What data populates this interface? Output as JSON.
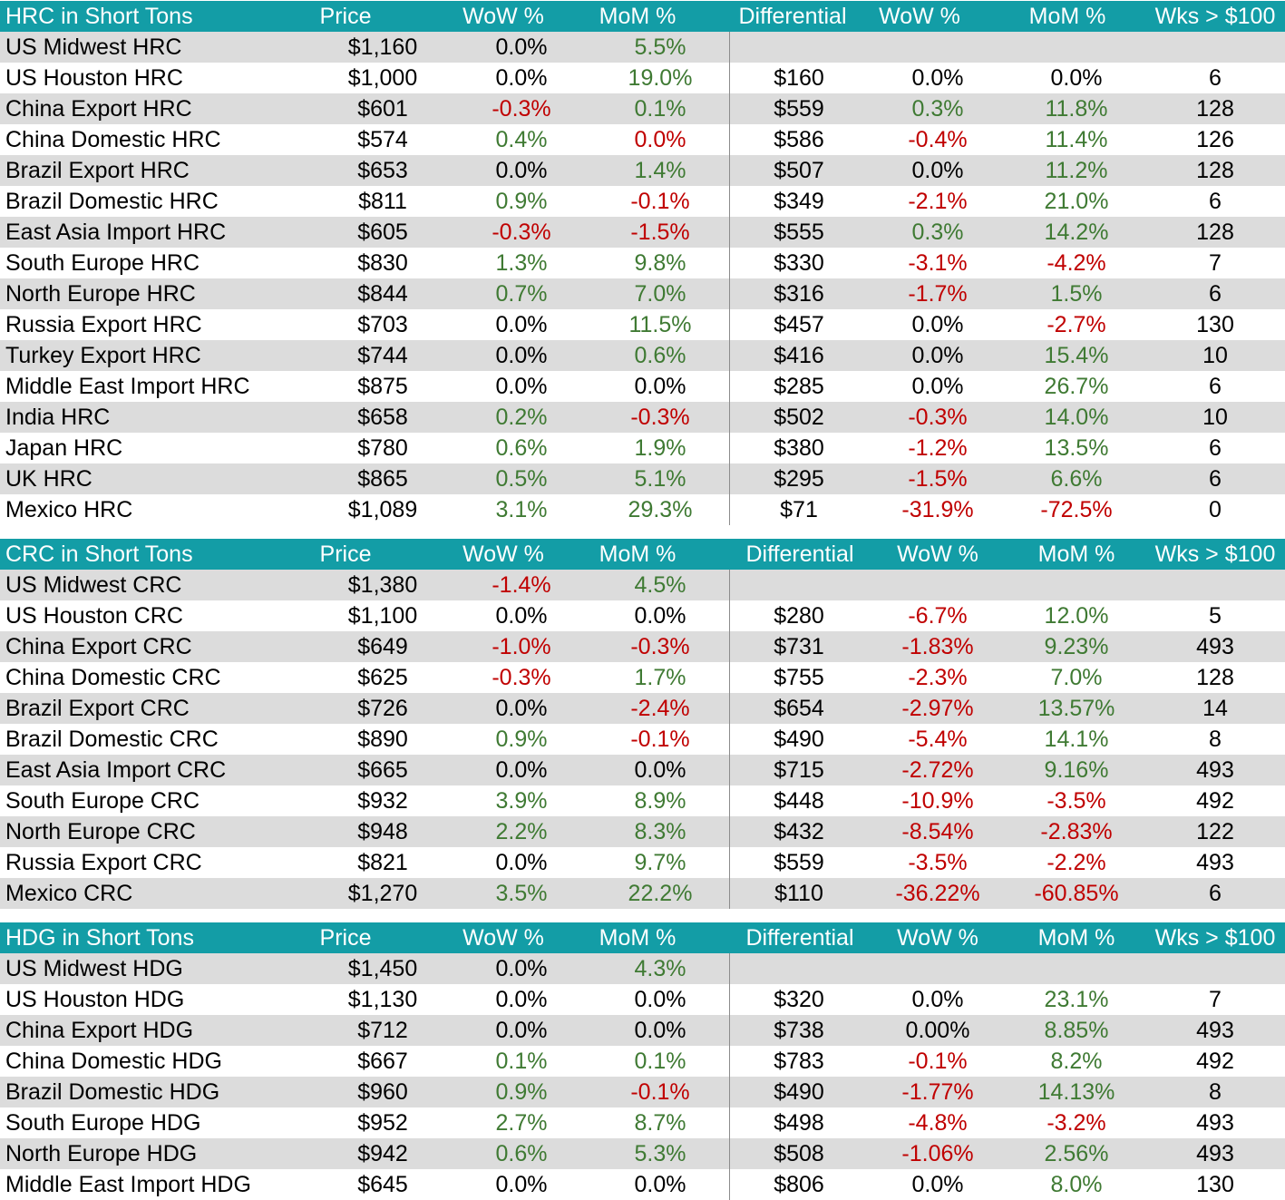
{
  "sections": [
    {
      "headers": [
        "HRC in Short Tons",
        "Price",
        "WoW %",
        "MoM %",
        "Differential",
        "WoW %",
        "MoM %",
        "Wks > $100"
      ],
      "rows": [
        {
          "name": "US Midwest HRC",
          "price": "$1,160",
          "wow": "0.0%",
          "wow_tone": "neu",
          "mom": "5.5%",
          "mom_tone": "pos",
          "diff": "",
          "dwow": "",
          "dwow_tone": "neu",
          "dmom": "",
          "dmom_tone": "neu",
          "wks": ""
        },
        {
          "name": "US Houston HRC",
          "price": "$1,000",
          "wow": "0.0%",
          "wow_tone": "neu",
          "mom": "19.0%",
          "mom_tone": "pos",
          "diff": "$160",
          "dwow": "0.0%",
          "dwow_tone": "neu",
          "dmom": "0.0%",
          "dmom_tone": "neu",
          "wks": "6"
        },
        {
          "name": "China Export HRC",
          "price": "$601",
          "wow": "-0.3%",
          "wow_tone": "neg",
          "mom": "0.1%",
          "mom_tone": "pos",
          "diff": "$559",
          "dwow": "0.3%",
          "dwow_tone": "pos",
          "dmom": "11.8%",
          "dmom_tone": "pos",
          "wks": "128"
        },
        {
          "name": "China Domestic HRC",
          "price": "$574",
          "wow": "0.4%",
          "wow_tone": "pos",
          "mom": "0.0%",
          "mom_tone": "neg",
          "diff": "$586",
          "dwow": "-0.4%",
          "dwow_tone": "neg",
          "dmom": "11.4%",
          "dmom_tone": "pos",
          "wks": "126"
        },
        {
          "name": "Brazil Export HRC",
          "price": "$653",
          "wow": "0.0%",
          "wow_tone": "neu",
          "mom": "1.4%",
          "mom_tone": "pos",
          "diff": "$507",
          "dwow": "0.0%",
          "dwow_tone": "neu",
          "dmom": "11.2%",
          "dmom_tone": "pos",
          "wks": "128"
        },
        {
          "name": "Brazil Domestic HRC",
          "price": "$811",
          "wow": "0.9%",
          "wow_tone": "pos",
          "mom": "-0.1%",
          "mom_tone": "neg",
          "diff": "$349",
          "dwow": "-2.1%",
          "dwow_tone": "neg",
          "dmom": "21.0%",
          "dmom_tone": "pos",
          "wks": "6"
        },
        {
          "name": "East Asia Import HRC",
          "price": "$605",
          "wow": "-0.3%",
          "wow_tone": "neg",
          "mom": "-1.5%",
          "mom_tone": "neg",
          "diff": "$555",
          "dwow": "0.3%",
          "dwow_tone": "pos",
          "dmom": "14.2%",
          "dmom_tone": "pos",
          "wks": "128"
        },
        {
          "name": "South Europe HRC",
          "price": "$830",
          "wow": "1.3%",
          "wow_tone": "pos",
          "mom": "9.8%",
          "mom_tone": "pos",
          "diff": "$330",
          "dwow": "-3.1%",
          "dwow_tone": "neg",
          "dmom": "-4.2%",
          "dmom_tone": "neg",
          "wks": "7"
        },
        {
          "name": "North Europe HRC",
          "price": "$844",
          "wow": "0.7%",
          "wow_tone": "pos",
          "mom": "7.0%",
          "mom_tone": "pos",
          "diff": "$316",
          "dwow": "-1.7%",
          "dwow_tone": "neg",
          "dmom": "1.5%",
          "dmom_tone": "pos",
          "wks": "6"
        },
        {
          "name": "Russia Export HRC",
          "price": "$703",
          "wow": "0.0%",
          "wow_tone": "neu",
          "mom": "11.5%",
          "mom_tone": "pos",
          "diff": "$457",
          "dwow": "0.0%",
          "dwow_tone": "neu",
          "dmom": "-2.7%",
          "dmom_tone": "neg",
          "wks": "130"
        },
        {
          "name": "Turkey Export HRC",
          "price": "$744",
          "wow": "0.0%",
          "wow_tone": "neu",
          "mom": "0.6%",
          "mom_tone": "pos",
          "diff": "$416",
          "dwow": "0.0%",
          "dwow_tone": "neu",
          "dmom": "15.4%",
          "dmom_tone": "pos",
          "wks": "10"
        },
        {
          "name": "Middle East Import HRC",
          "price": "$875",
          "wow": "0.0%",
          "wow_tone": "neu",
          "mom": "0.0%",
          "mom_tone": "neu",
          "diff": "$285",
          "dwow": "0.0%",
          "dwow_tone": "neu",
          "dmom": "26.7%",
          "dmom_tone": "pos",
          "wks": "6"
        },
        {
          "name": "India HRC",
          "price": "$658",
          "wow": "0.2%",
          "wow_tone": "pos",
          "mom": "-0.3%",
          "mom_tone": "neg",
          "diff": "$502",
          "dwow": "-0.3%",
          "dwow_tone": "neg",
          "dmom": "14.0%",
          "dmom_tone": "pos",
          "wks": "10"
        },
        {
          "name": "Japan HRC",
          "price": "$780",
          "wow": "0.6%",
          "wow_tone": "pos",
          "mom": "1.9%",
          "mom_tone": "pos",
          "diff": "$380",
          "dwow": "-1.2%",
          "dwow_tone": "neg",
          "dmom": "13.5%",
          "dmom_tone": "pos",
          "wks": "6"
        },
        {
          "name": "UK HRC",
          "price": "$865",
          "wow": "0.5%",
          "wow_tone": "pos",
          "mom": "5.1%",
          "mom_tone": "pos",
          "diff": "$295",
          "dwow": "-1.5%",
          "dwow_tone": "neg",
          "dmom": "6.6%",
          "dmom_tone": "pos",
          "wks": "6"
        },
        {
          "name": "Mexico HRC",
          "price": "$1,089",
          "wow": "3.1%",
          "wow_tone": "pos",
          "mom": "29.3%",
          "mom_tone": "pos",
          "diff": "$71",
          "dwow": "-31.9%",
          "dwow_tone": "neg",
          "dmom": "-72.5%",
          "dmom_tone": "neg",
          "wks": "0"
        }
      ]
    },
    {
      "headers": [
        "CRC in Short Tons",
        "Price",
        "WoW %",
        "MoM %",
        "Differential",
        "WoW %",
        "MoM %",
        "Wks > $100"
      ],
      "rows": [
        {
          "name": "US Midwest CRC",
          "price": "$1,380",
          "wow": "-1.4%",
          "wow_tone": "neg",
          "mom": "4.5%",
          "mom_tone": "pos",
          "diff": "",
          "dwow": "",
          "dwow_tone": "neu",
          "dmom": "",
          "dmom_tone": "neu",
          "wks": ""
        },
        {
          "name": "US Houston CRC",
          "price": "$1,100",
          "wow": "0.0%",
          "wow_tone": "neu",
          "mom": "0.0%",
          "mom_tone": "neu",
          "diff": "$280",
          "dwow": "-6.7%",
          "dwow_tone": "neg",
          "dmom": "12.0%",
          "dmom_tone": "pos",
          "wks": "5"
        },
        {
          "name": "China Export CRC",
          "price": "$649",
          "wow": "-1.0%",
          "wow_tone": "neg",
          "mom": "-0.3%",
          "mom_tone": "neg",
          "diff": "$731",
          "dwow": "-1.83%",
          "dwow_tone": "neg",
          "dmom": "9.23%",
          "dmom_tone": "pos",
          "wks": "493"
        },
        {
          "name": "China Domestic CRC",
          "price": "$625",
          "wow": "-0.3%",
          "wow_tone": "neg",
          "mom": "1.7%",
          "mom_tone": "pos",
          "diff": "$755",
          "dwow": "-2.3%",
          "dwow_tone": "neg",
          "dmom": "7.0%",
          "dmom_tone": "pos",
          "wks": "128"
        },
        {
          "name": "Brazil Export CRC",
          "price": "$726",
          "wow": "0.0%",
          "wow_tone": "neu",
          "mom": "-2.4%",
          "mom_tone": "neg",
          "diff": "$654",
          "dwow": "-2.97%",
          "dwow_tone": "neg",
          "dmom": "13.57%",
          "dmom_tone": "pos",
          "wks": "14"
        },
        {
          "name": "Brazil Domestic CRC",
          "price": "$890",
          "wow": "0.9%",
          "wow_tone": "pos",
          "mom": "-0.1%",
          "mom_tone": "neg",
          "diff": "$490",
          "dwow": "-5.4%",
          "dwow_tone": "neg",
          "dmom": "14.1%",
          "dmom_tone": "pos",
          "wks": "8"
        },
        {
          "name": "East Asia Import CRC",
          "price": "$665",
          "wow": "0.0%",
          "wow_tone": "neu",
          "mom": "0.0%",
          "mom_tone": "neu",
          "diff": "$715",
          "dwow": "-2.72%",
          "dwow_tone": "neg",
          "dmom": "9.16%",
          "dmom_tone": "pos",
          "wks": "493"
        },
        {
          "name": "South Europe CRC",
          "price": "$932",
          "wow": "3.9%",
          "wow_tone": "pos",
          "mom": "8.9%",
          "mom_tone": "pos",
          "diff": "$448",
          "dwow": "-10.9%",
          "dwow_tone": "neg",
          "dmom": "-3.5%",
          "dmom_tone": "neg",
          "wks": "492"
        },
        {
          "name": "North Europe CRC",
          "price": "$948",
          "wow": "2.2%",
          "wow_tone": "pos",
          "mom": "8.3%",
          "mom_tone": "pos",
          "diff": "$432",
          "dwow": "-8.54%",
          "dwow_tone": "neg",
          "dmom": "-2.83%",
          "dmom_tone": "neg",
          "wks": "122"
        },
        {
          "name": "Russia Export CRC",
          "price": "$821",
          "wow": "0.0%",
          "wow_tone": "neu",
          "mom": "9.7%",
          "mom_tone": "pos",
          "diff": "$559",
          "dwow": "-3.5%",
          "dwow_tone": "neg",
          "dmom": "-2.2%",
          "dmom_tone": "neg",
          "wks": "493"
        },
        {
          "name": "Mexico CRC",
          "price": "$1,270",
          "wow": "3.5%",
          "wow_tone": "pos",
          "mom": "22.2%",
          "mom_tone": "pos",
          "diff": "$110",
          "dwow": "-36.22%",
          "dwow_tone": "neg",
          "dmom": "-60.85%",
          "dmom_tone": "neg",
          "wks": "6"
        }
      ]
    },
    {
      "headers": [
        "HDG in Short Tons",
        "Price",
        "WoW %",
        "MoM %",
        "Differential",
        "WoW %",
        "MoM %",
        "Wks > $100"
      ],
      "rows": [
        {
          "name": "US Midwest HDG",
          "price": "$1,450",
          "wow": "0.0%",
          "wow_tone": "neu",
          "mom": "4.3%",
          "mom_tone": "pos",
          "diff": "",
          "dwow": "",
          "dwow_tone": "neu",
          "dmom": "",
          "dmom_tone": "neu",
          "wks": ""
        },
        {
          "name": "US Houston HDG",
          "price": "$1,130",
          "wow": "0.0%",
          "wow_tone": "neu",
          "mom": "0.0%",
          "mom_tone": "neu",
          "diff": "$320",
          "dwow": "0.0%",
          "dwow_tone": "neu",
          "dmom": "23.1%",
          "dmom_tone": "pos",
          "wks": "7"
        },
        {
          "name": "China Export HDG",
          "price": "$712",
          "wow": "0.0%",
          "wow_tone": "neu",
          "mom": "0.0%",
          "mom_tone": "neu",
          "diff": "$738",
          "dwow": "0.00%",
          "dwow_tone": "neu",
          "dmom": "8.85%",
          "dmom_tone": "pos",
          "wks": "493"
        },
        {
          "name": "China Domestic HDG",
          "price": "$667",
          "wow": "0.1%",
          "wow_tone": "pos",
          "mom": "0.1%",
          "mom_tone": "pos",
          "diff": "$783",
          "dwow": "-0.1%",
          "dwow_tone": "neg",
          "dmom": "8.2%",
          "dmom_tone": "pos",
          "wks": "492"
        },
        {
          "name": "Brazil Domestic HDG",
          "price": "$960",
          "wow": "0.9%",
          "wow_tone": "pos",
          "mom": "-0.1%",
          "mom_tone": "neg",
          "diff": "$490",
          "dwow": "-1.77%",
          "dwow_tone": "neg",
          "dmom": "14.13%",
          "dmom_tone": "pos",
          "wks": "8"
        },
        {
          "name": "South Europe HDG",
          "price": "$952",
          "wow": "2.7%",
          "wow_tone": "pos",
          "mom": "8.7%",
          "mom_tone": "pos",
          "diff": "$498",
          "dwow": "-4.8%",
          "dwow_tone": "neg",
          "dmom": "-3.2%",
          "dmom_tone": "neg",
          "wks": "493"
        },
        {
          "name": "North Europe HDG",
          "price": "$942",
          "wow": "0.6%",
          "wow_tone": "pos",
          "mom": "5.3%",
          "mom_tone": "pos",
          "diff": "$508",
          "dwow": "-1.06%",
          "dwow_tone": "neg",
          "dmom": "2.56%",
          "dmom_tone": "pos",
          "wks": "493"
        },
        {
          "name": "Middle East Import HDG",
          "price": "$645",
          "wow": "0.0%",
          "wow_tone": "neu",
          "mom": "0.0%",
          "mom_tone": "neu",
          "diff": "$806",
          "dwow": "0.0%",
          "dwow_tone": "neu",
          "dmom": "8.0%",
          "dmom_tone": "pos",
          "wks": "130"
        }
      ]
    }
  ]
}
